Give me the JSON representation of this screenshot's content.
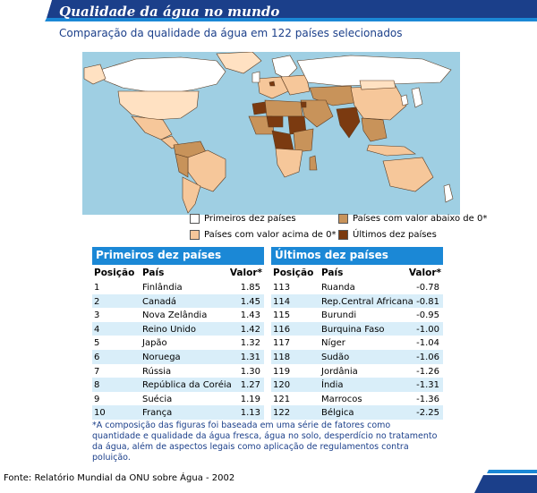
{
  "title": "Qualidade da água no mundo",
  "subtitle": "Comparação da qualidade da água em 122 países selecionados",
  "legend": [
    {
      "label": "Primeiros dez países",
      "color": "#ffffff"
    },
    {
      "label": "Países com valor acima de 0*",
      "color": "#f6c79a"
    },
    {
      "label": "Países com valor abaixo de 0*",
      "color": "#c8935a"
    },
    {
      "label": "Últimos dez países",
      "color": "#7b3a10"
    }
  ],
  "colors": {
    "water": "#9fcfe3",
    "no_data": "#ffe1c2",
    "header_blue": "#1b88d6",
    "navy": "#1b3f8a"
  },
  "top_table": {
    "title": "Primeiros dez países",
    "headers": {
      "rank": "Posição",
      "country": "País",
      "value": "Valor*"
    },
    "rows": [
      {
        "rank": "1",
        "country": "Finlândia",
        "value": "1.85"
      },
      {
        "rank": "2",
        "country": "Canadá",
        "value": "1.45"
      },
      {
        "rank": "3",
        "country": "Nova Zelândia",
        "value": "1.43"
      },
      {
        "rank": "4",
        "country": "Reino Unido",
        "value": "1.42"
      },
      {
        "rank": "5",
        "country": "Japão",
        "value": "1.32"
      },
      {
        "rank": "6",
        "country": "Noruega",
        "value": "1.31"
      },
      {
        "rank": "7",
        "country": "Rússia",
        "value": "1.30"
      },
      {
        "rank": "8",
        "country": "República da Coréia",
        "value": "1.27"
      },
      {
        "rank": "9",
        "country": "Suécia",
        "value": "1.19"
      },
      {
        "rank": "10",
        "country": "França",
        "value": "1.13"
      }
    ]
  },
  "bottom_table": {
    "title": "Últimos dez países",
    "headers": {
      "rank": "Posição",
      "country": "País",
      "value": "Valor*"
    },
    "rows": [
      {
        "rank": "113",
        "country": "Ruanda",
        "value": "-0.78"
      },
      {
        "rank": "114",
        "country": "Rep.Central Africana",
        "value": "-0.81"
      },
      {
        "rank": "115",
        "country": "Burundi",
        "value": "-0.95"
      },
      {
        "rank": "116",
        "country": "Burquina Faso",
        "value": "-1.00"
      },
      {
        "rank": "117",
        "country": "Níger",
        "value": "-1.04"
      },
      {
        "rank": "118",
        "country": "Sudão",
        "value": "-1.06"
      },
      {
        "rank": "119",
        "country": "Jordânia",
        "value": "-1.26"
      },
      {
        "rank": "120",
        "country": "Índia",
        "value": "-1.31"
      },
      {
        "rank": "121",
        "country": "Marrocos",
        "value": "-1.36"
      },
      {
        "rank": "122",
        "country": "Bélgica",
        "value": "-2.25"
      }
    ]
  },
  "note": "*A composição das figuras foi baseada em uma série de fatores como quantidade e qualidade da água fresca, água no solo, desperdício no tratamento da água, além de aspectos legais como aplicação de regulamentos contra poluição.",
  "source": "Fonte: Relatório Mundial da ONU sobre Água  - 2002"
}
